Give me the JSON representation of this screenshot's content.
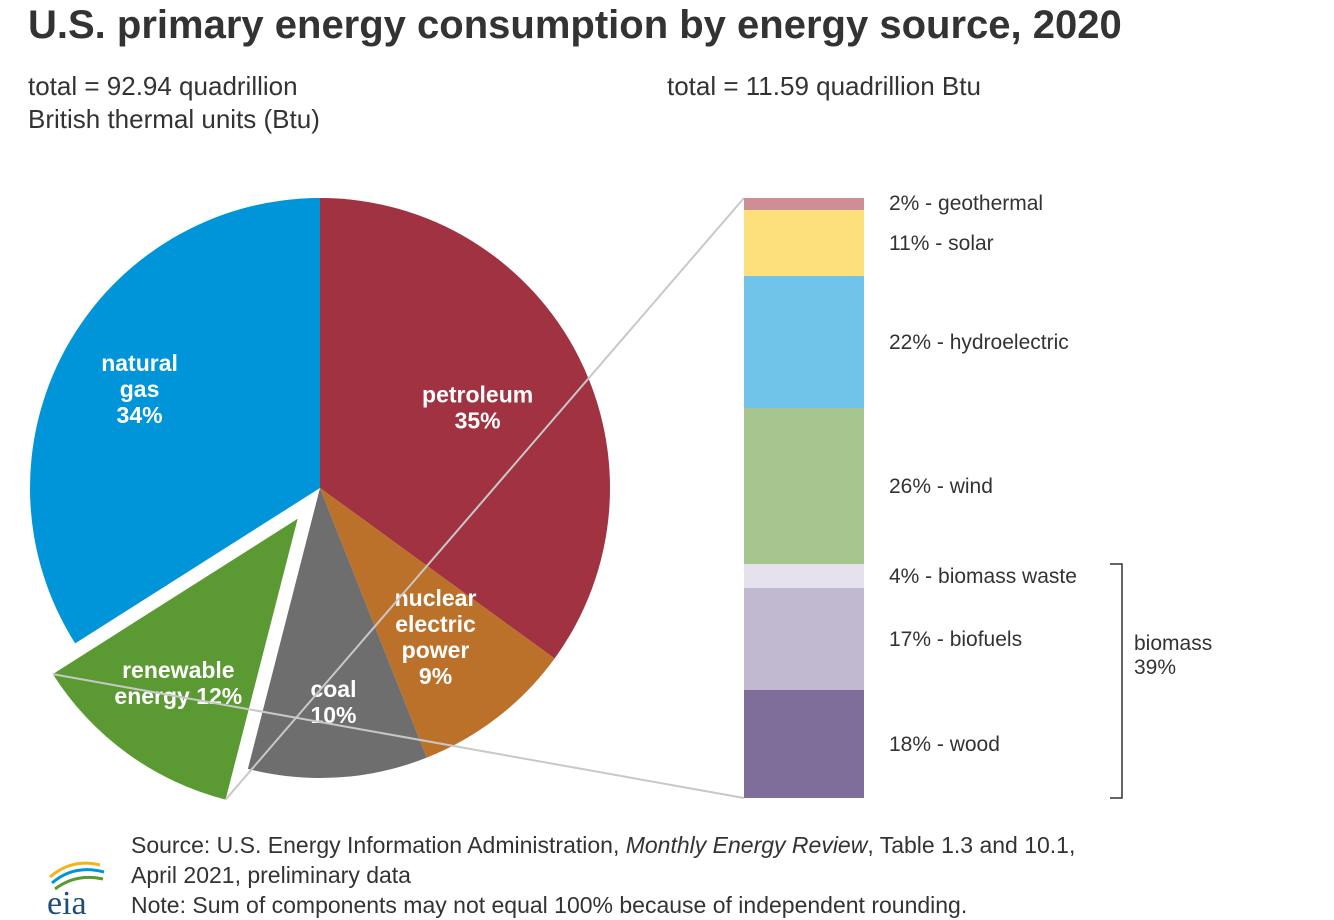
{
  "title": "U.S. primary energy consumption by energy source, 2020",
  "left_total": [
    "total = 92.94 quadrillion",
    "British thermal units (Btu)"
  ],
  "right_total": "total = 11.59 quadrillion Btu",
  "chart_data": [
    {
      "type": "pie",
      "slices": [
        {
          "name": "petroleum",
          "value": 35,
          "color": "#a03241",
          "label_lines": [
            "petroleum",
            "35%"
          ]
        },
        {
          "name": "nuclear electric power",
          "value": 9,
          "color": "#bc712a",
          "label_lines": [
            "nuclear",
            "electric",
            "power",
            "9%"
          ]
        },
        {
          "name": "coal",
          "value": 10,
          "color": "#6e6e6e",
          "label_lines": [
            "coal",
            "10%"
          ]
        },
        {
          "name": "renewable energy",
          "value": 12,
          "color": "#5b9a32",
          "exploded": true,
          "label_lines": [
            "renewable",
            "energy 12%"
          ]
        },
        {
          "name": "natural gas",
          "value": 34,
          "color": "#0095d9",
          "label_lines": [
            "natural",
            "gas",
            "34%"
          ]
        }
      ]
    },
    {
      "type": "bar",
      "stacked": true,
      "segments": [
        {
          "name": "geothermal",
          "value": 2,
          "color": "#cf8d96",
          "label": "2% - geothermal"
        },
        {
          "name": "solar",
          "value": 11,
          "color": "#fde07b",
          "label": "11% - solar"
        },
        {
          "name": "hydroelectric",
          "value": 22,
          "color": "#70c4ea",
          "label": "22% - hydroelectric"
        },
        {
          "name": "wind",
          "value": 26,
          "color": "#a7c58e",
          "label": "26% - wind"
        },
        {
          "name": "biomass waste",
          "value": 4,
          "color": "#e5e1ed",
          "label": "4% - biomass waste"
        },
        {
          "name": "biofuels",
          "value": 17,
          "color": "#c1b9d0",
          "label": "17% - biofuels"
        },
        {
          "name": "wood",
          "value": 18,
          "color": "#7e6e99",
          "label": "18% - wood"
        }
      ],
      "bracket": {
        "lines": [
          "biomass",
          "39%"
        ]
      }
    }
  ],
  "source": {
    "prefix": "Source: U.S. Energy Information Administration, ",
    "italic": "Monthly Energy Review",
    "suffix": ", Table 1.3 and 10.1,",
    "line2": "April 2021, preliminary data"
  },
  "note": "Note: Sum of components may not equal 100% because of independent rounding.",
  "logo_text": "eia"
}
